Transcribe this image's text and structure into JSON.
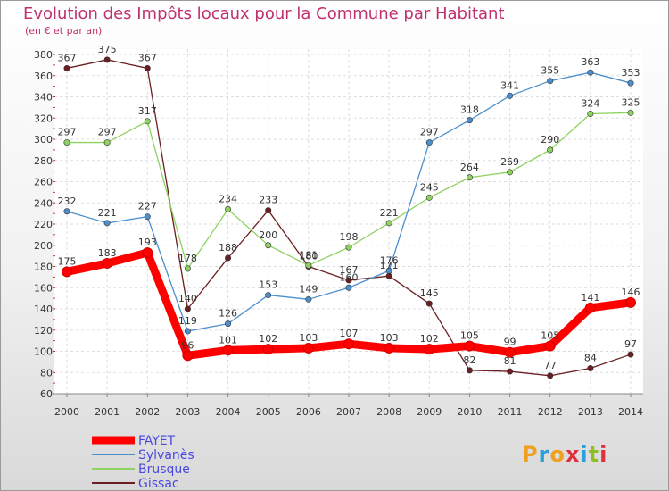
{
  "title": "Evolution des Impôts locaux pour la Commune par Habitant",
  "subtitle": "(en € et par an)",
  "chart_data": {
    "type": "line",
    "title": "Evolution des Impôts locaux pour la Commune par Habitant",
    "subtitle": "(en € et par an)",
    "xlabel": "",
    "ylabel": "",
    "x": [
      "2000",
      "2001",
      "2002",
      "2003",
      "2004",
      "2005",
      "2006",
      "2007",
      "2008",
      "2009",
      "2010",
      "2011",
      "2012",
      "2013",
      "2014"
    ],
    "ylim": [
      60,
      380
    ],
    "yticks": [
      60,
      80,
      100,
      120,
      140,
      160,
      180,
      200,
      220,
      240,
      260,
      280,
      300,
      320,
      340,
      360,
      380
    ],
    "grid": true,
    "legend_position": "bottom-left",
    "series": [
      {
        "name": "Gissac",
        "color": "#6b1f22",
        "values": [
          367,
          375,
          367,
          140,
          188,
          233,
          180,
          167,
          171,
          145,
          82,
          81,
          77,
          84,
          97
        ]
      },
      {
        "name": "Brusque",
        "color": "#8ed260",
        "values": [
          297,
          297,
          317,
          178,
          234,
          200,
          181,
          198,
          221,
          245,
          264,
          269,
          290,
          324,
          325
        ]
      },
      {
        "name": "Sylvanès",
        "color": "#4d8fcc",
        "values": [
          232,
          221,
          227,
          119,
          126,
          153,
          149,
          160,
          176,
          297,
          318,
          341,
          355,
          363,
          353
        ]
      },
      {
        "name": "FAYET",
        "color": "#ff0000",
        "values": [
          175,
          183,
          193,
          96,
          101,
          102,
          103,
          107,
          103,
          102,
          105,
          99,
          105,
          141,
          146
        ]
      }
    ]
  },
  "legend": [
    {
      "name": "FAYET",
      "color": "#ff0000"
    },
    {
      "name": "Sylvanès",
      "color": "#4d8fcc"
    },
    {
      "name": "Brusque",
      "color": "#8ed260"
    },
    {
      "name": "Gissac",
      "color": "#6b1f22"
    }
  ],
  "logo": {
    "text": "Proxiti"
  }
}
